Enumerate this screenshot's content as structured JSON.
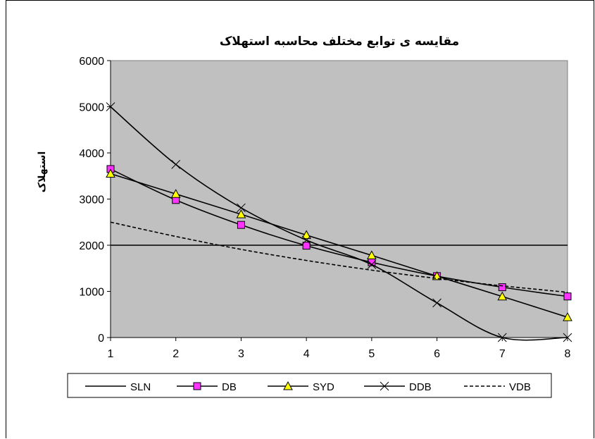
{
  "chart_data": {
    "type": "line",
    "title": "مقایسه ی توابع مختلف محاسبه استهلاک",
    "xlabel": "",
    "ylabel": "استهلاک",
    "x": [
      1,
      2,
      3,
      4,
      5,
      6,
      7,
      8
    ],
    "xlim": [
      1,
      8
    ],
    "ylim": [
      0,
      6000
    ],
    "yticks": [
      0,
      1000,
      2000,
      3000,
      4000,
      5000,
      6000
    ],
    "grid": false,
    "plot_background": "#c0c0c0",
    "legend_position": "bottom",
    "series": [
      {
        "name": "SLN",
        "values": [
          2000,
          2000,
          2000,
          2000,
          2000,
          2000,
          2000,
          2000
        ],
        "marker": "none",
        "dash": "solid",
        "color": "#000000"
      },
      {
        "name": "DB",
        "values": [
          3650,
          2980,
          2440,
          1990,
          1630,
          1330,
          1090,
          890
        ],
        "marker": "square",
        "dash": "solid",
        "color": "#000000",
        "marker_color": "#ff33ff"
      },
      {
        "name": "SYD",
        "values": [
          3550,
          3110,
          2670,
          2220,
          1780,
          1330,
          890,
          440
        ],
        "marker": "triangle",
        "dash": "solid",
        "color": "#000000",
        "marker_color": "#ffff00"
      },
      {
        "name": "DDB",
        "values": [
          5000,
          3750,
          2810,
          2110,
          1580,
          750,
          0,
          0
        ],
        "marker": "x",
        "dash": "solid",
        "color": "#000000"
      },
      {
        "name": "VDB",
        "values": [
          2500,
          2190,
          1910,
          1670,
          1460,
          1280,
          1120,
          980
        ],
        "marker": "none",
        "dash": "dashed",
        "color": "#000000"
      }
    ]
  }
}
